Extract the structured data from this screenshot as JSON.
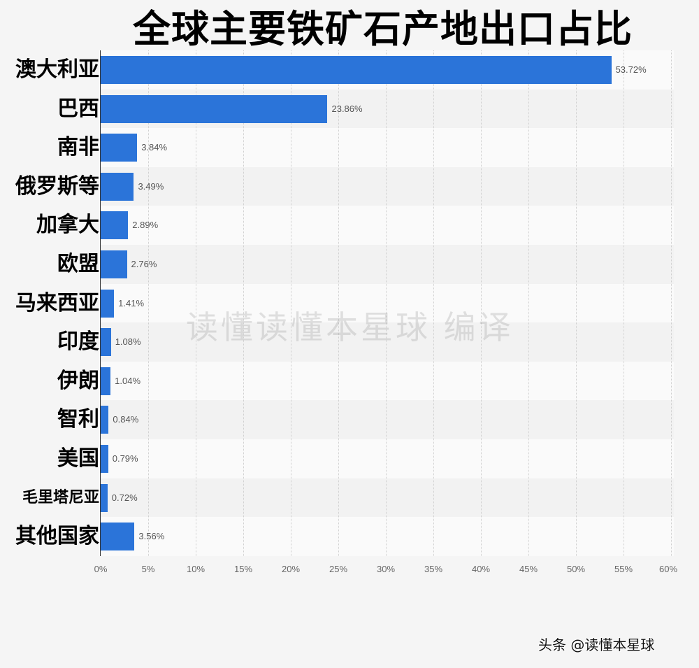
{
  "title": "全球主要铁矿石产地出口占比",
  "watermark": "读懂读懂本星球  编译",
  "source": "头条 @读懂本星球",
  "colors": {
    "bar": "#2b74d9",
    "background": "#f5f5f5"
  },
  "chart_data": {
    "type": "bar",
    "orientation": "horizontal",
    "title": "全球主要铁矿石产地出口占比",
    "xlabel": "",
    "ylabel": "",
    "xlim": [
      0,
      60
    ],
    "grid": true,
    "categories": [
      "澳大利亚",
      "巴西",
      "南非",
      "俄罗斯等",
      "加拿大",
      "欧盟",
      "马来西亚",
      "印度",
      "伊朗",
      "智利",
      "美国",
      "毛里塔尼亚",
      "其他国家"
    ],
    "values": [
      53.72,
      23.86,
      3.84,
      3.49,
      2.89,
      2.76,
      1.41,
      1.08,
      1.04,
      0.84,
      0.79,
      0.72,
      3.56
    ],
    "value_labels": [
      "53.72%",
      "23.86%",
      "3.84%",
      "3.49%",
      "2.89%",
      "2.76%",
      "1.41%",
      "1.08%",
      "1.04%",
      "0.84%",
      "0.79%",
      "0.72%",
      "3.56%"
    ],
    "x_ticks": [
      "0%",
      "5%",
      "10%",
      "15%",
      "20%",
      "25%",
      "30%",
      "35%",
      "40%",
      "45%",
      "50%",
      "55%",
      "60%"
    ]
  }
}
